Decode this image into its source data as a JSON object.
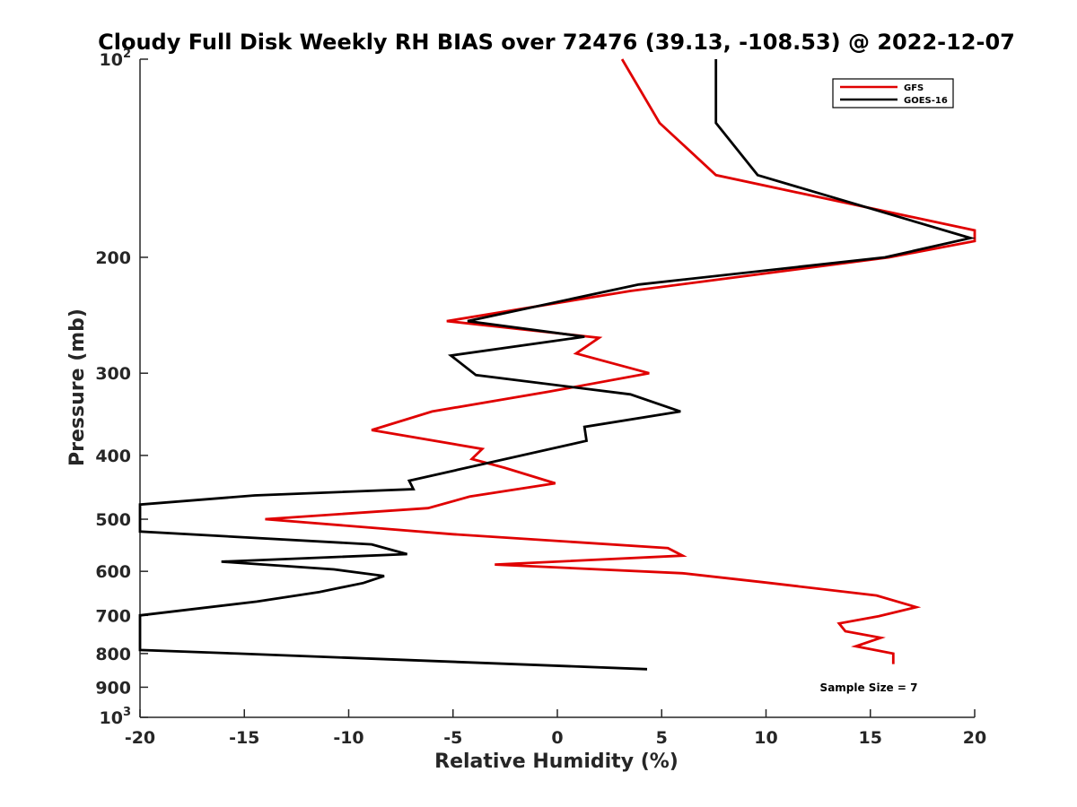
{
  "chart_data": {
    "type": "line",
    "title": "Cloudy Full Disk Weekly RH BIAS over 72476 (39.13, -108.53) @ 2022-12-07",
    "xlabel": "Relative Humidity (%)",
    "ylabel": "Pressure (mb)",
    "xlim": [
      -20,
      20
    ],
    "ylim": [
      100,
      1000
    ],
    "y_scale": "log",
    "y_reversed": true,
    "grid": false,
    "legend_placement": "top-right",
    "x_ticks": [
      "-20",
      "-15",
      "-10",
      "-5",
      "0",
      "5",
      "10",
      "15",
      "20"
    ],
    "x_tick_values": [
      -20,
      -15,
      -10,
      -5,
      0,
      5,
      10,
      15,
      20
    ],
    "y_ticks": [
      {
        "value": 100,
        "base": "10",
        "exp": "2"
      },
      {
        "value": 200,
        "label": "200"
      },
      {
        "value": 300,
        "label": "300"
      },
      {
        "value": 400,
        "label": "400"
      },
      {
        "value": 500,
        "label": "500"
      },
      {
        "value": 600,
        "label": "600"
      },
      {
        "value": 700,
        "label": "700"
      },
      {
        "value": 800,
        "label": "800"
      },
      {
        "value": 900,
        "label": "900"
      },
      {
        "value": 1000,
        "base": "10",
        "exp": "3"
      }
    ],
    "annotation": "Sample Size = 7",
    "series": [
      {
        "name": "GFS",
        "color": "#e00000",
        "points": [
          [
            3.1,
            100
          ],
          [
            4.9,
            125
          ],
          [
            7.6,
            150
          ],
          [
            20.0,
            182
          ],
          [
            20.0,
            189
          ],
          [
            15.9,
            200
          ],
          [
            3.5,
            225
          ],
          [
            -5.3,
            250
          ],
          [
            2.0,
            265
          ],
          [
            0.9,
            280
          ],
          [
            4.4,
            300
          ],
          [
            -0.4,
            320
          ],
          [
            -6.0,
            343
          ],
          [
            -8.9,
            366
          ],
          [
            -3.6,
            391
          ],
          [
            -4.1,
            405
          ],
          [
            -2.5,
            418
          ],
          [
            -0.1,
            441
          ],
          [
            -4.2,
            462
          ],
          [
            -6.2,
            481
          ],
          [
            -14.0,
            500
          ],
          [
            -5.0,
            527
          ],
          [
            5.3,
            553
          ],
          [
            6.0,
            568
          ],
          [
            -3.0,
            586
          ],
          [
            6.0,
            604
          ],
          [
            10.0,
            624
          ],
          [
            15.3,
            653
          ],
          [
            17.2,
            680
          ],
          [
            15.4,
            702
          ],
          [
            13.5,
            720
          ],
          [
            13.8,
            740
          ],
          [
            15.5,
            757
          ],
          [
            14.3,
            780
          ],
          [
            16.1,
            800
          ],
          [
            16.1,
            830
          ]
        ]
      },
      {
        "name": "GOES-16",
        "color": "#000000",
        "points": [
          [
            7.6,
            100
          ],
          [
            7.6,
            125
          ],
          [
            9.6,
            150
          ],
          [
            19.8,
            187
          ],
          [
            15.7,
            200
          ],
          [
            3.9,
            220
          ],
          [
            -4.3,
            250
          ],
          [
            1.3,
            264
          ],
          [
            -5.1,
            282
          ],
          [
            -3.9,
            302
          ],
          [
            3.5,
            323
          ],
          [
            5.9,
            343
          ],
          [
            1.3,
            362
          ],
          [
            1.4,
            380
          ],
          [
            -7.1,
            437
          ],
          [
            -6.9,
            450
          ],
          [
            -14.5,
            460
          ],
          [
            -20.0,
            475
          ],
          [
            -20.0,
            522
          ],
          [
            -8.9,
            546
          ],
          [
            -7.2,
            565
          ],
          [
            -16.1,
            580
          ],
          [
            -10.7,
            596
          ],
          [
            -8.3,
            610
          ],
          [
            -9.3,
            625
          ],
          [
            -11.4,
            645
          ],
          [
            -14.4,
            667
          ],
          [
            -20.0,
            700
          ],
          [
            -20.0,
            790
          ],
          [
            -15.3,
            800
          ],
          [
            4.3,
            845
          ]
        ]
      }
    ]
  }
}
